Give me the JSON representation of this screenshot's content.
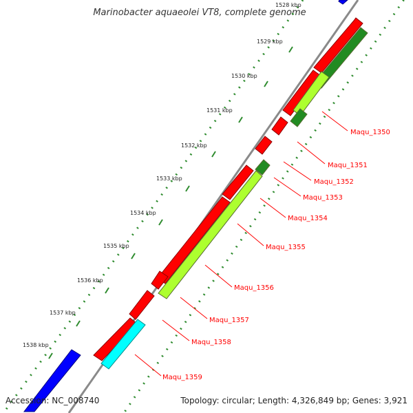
{
  "title": "Marinobacter aquaeolei VT8, complete genome",
  "accession": "Accession: NC_008740",
  "topology": "Topology: circular; Length: 4,326,849 bp; Genes: 3,921",
  "ticks": [
    "1528 kbp",
    "1529 kbp",
    "1530 kbp",
    "1531 kbp",
    "1532 kbp",
    "1533 kbp",
    "1534 kbp",
    "1535 kbp",
    "1536 kbp",
    "1537 kbp",
    "1538 kbp"
  ],
  "genes": [
    "Maqu_1350",
    "Maqu_1351",
    "Maqu_1352",
    "Maqu_1353",
    "Maqu_1354",
    "Maqu_1355",
    "Maqu_1356",
    "Maqu_1357",
    "Maqu_1358",
    "Maqu_1359"
  ],
  "colors": {
    "backbone": "#8a8a8a",
    "dots": "#2e8b2e",
    "forward_gene": "#ff0000",
    "reverse_gene": "#adff2f",
    "reverse_dark": "#228b22",
    "cyan_gene": "#00ffff",
    "blue_gene": "#0000ff",
    "label": "#ff0000"
  }
}
